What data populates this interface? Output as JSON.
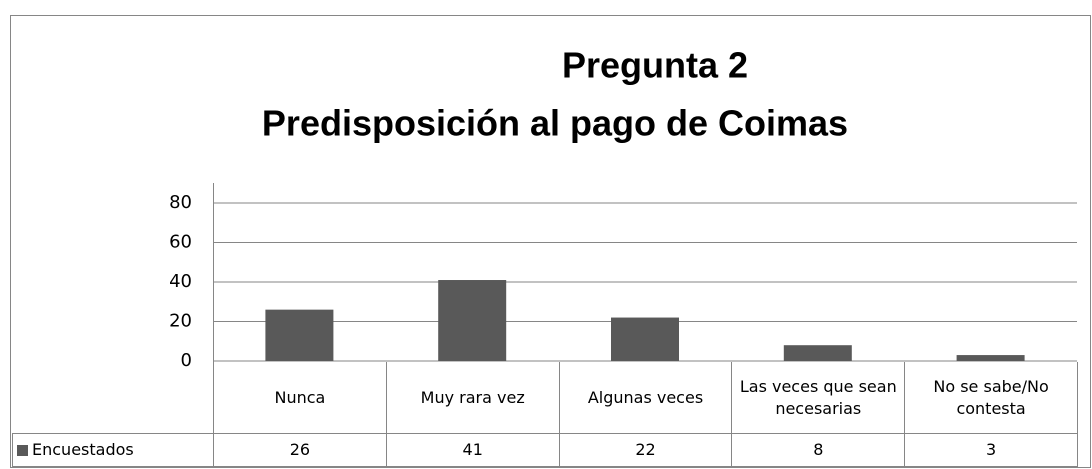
{
  "chart_data": {
    "type": "bar",
    "title": "Pregunta 2",
    "subtitle": "Predisposición al pago de Coimas",
    "categories": [
      "Nunca",
      "Muy rara vez",
      "Algunas veces",
      "Las veces que sean necesarias",
      "No se sabe/No contesta"
    ],
    "series": [
      {
        "name": "Encuestados",
        "color": "#595959",
        "values": [
          26,
          41,
          22,
          8,
          3
        ]
      }
    ],
    "ylim": [
      0,
      80
    ],
    "yticks": [
      0,
      20,
      40,
      60,
      80
    ],
    "grid": true
  }
}
